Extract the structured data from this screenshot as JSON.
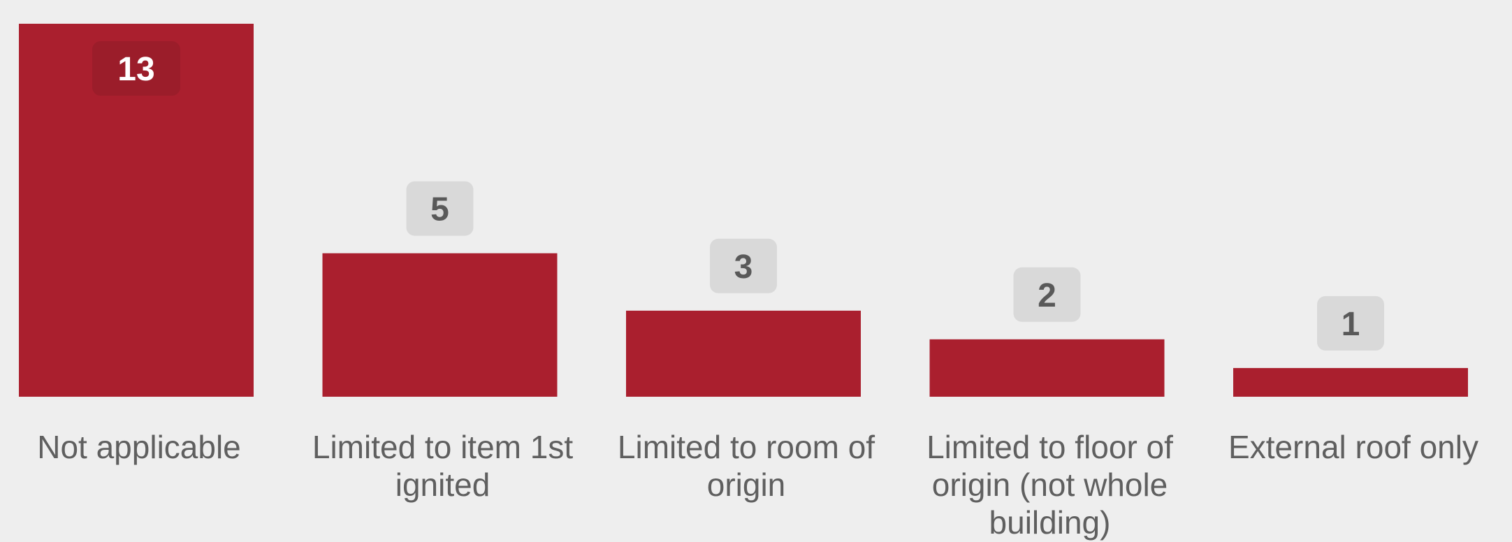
{
  "chart_data": {
    "type": "bar",
    "categories": [
      [
        "Not applicable"
      ],
      [
        "Limited to item 1st",
        "ignited"
      ],
      [
        "Limited to room of",
        "origin"
      ],
      [
        "Limited to floor of",
        "origin (not whole",
        "building)"
      ],
      [
        "External roof only"
      ]
    ],
    "values": [
      13,
      5,
      3,
      2,
      1
    ],
    "title": "",
    "xlabel": "",
    "ylabel": "",
    "ylim": [
      0,
      13
    ],
    "grid": false,
    "legend": "none",
    "colors": {
      "bar": "#aa1f2e",
      "label_bg_inside": "#9b1d2a",
      "label_bg_outside": "#d9d9d9",
      "label_text_inside": "#ffffff",
      "label_text_outside": "#595959",
      "category_text": "#5f5f5f",
      "background": "#eeeeee"
    }
  }
}
